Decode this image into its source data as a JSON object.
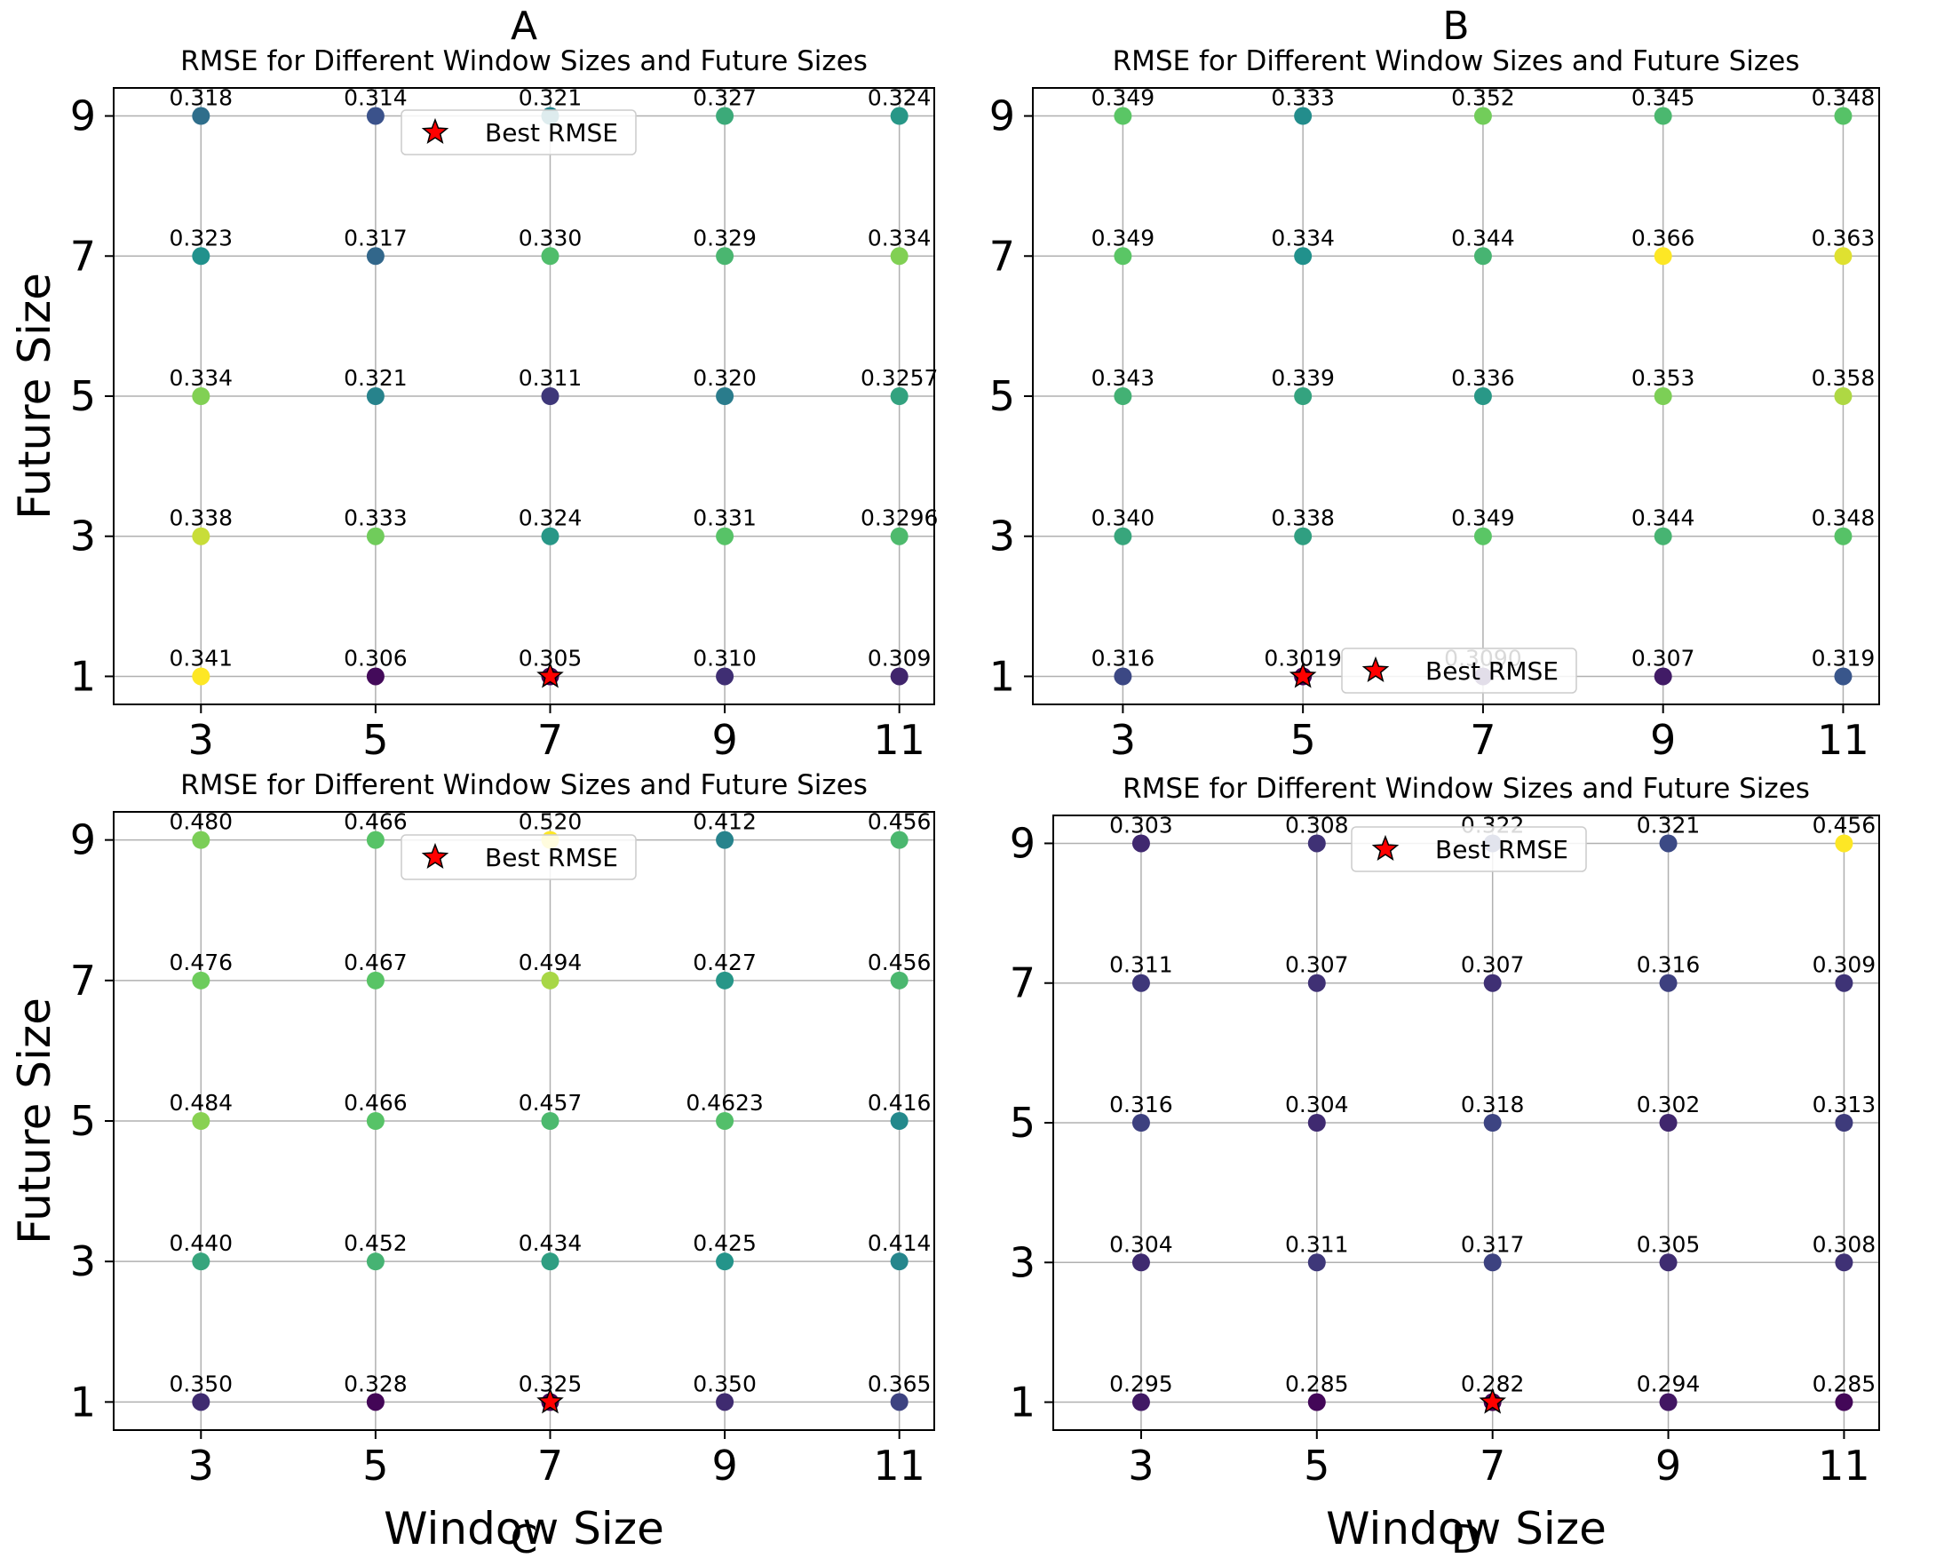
{
  "colors": {
    "colormap": [
      "#440154",
      "#3b528b",
      "#21918c",
      "#5ec962",
      "#fde725"
    ],
    "best_marker": "#ff0000",
    "grid": "#b0b0b0"
  },
  "shared": {
    "xlabel": "Window Size",
    "ylabel": "Future Size",
    "x_ticks": [
      "3",
      "5",
      "7",
      "9",
      "11"
    ],
    "y_ticks": [
      "1",
      "3",
      "5",
      "7",
      "9"
    ],
    "legend_label": "Best RMSE",
    "marker_icon": "red-star-icon"
  },
  "chart_data": [
    {
      "panel": "A",
      "type": "scatter",
      "title": "RMSE for Different Window Sizes and Future Sizes",
      "xlabel": "",
      "ylabel": "Future Size",
      "x": [
        3,
        5,
        7,
        9,
        11
      ],
      "y": [
        1,
        3,
        5,
        7,
        9
      ],
      "xlim": [
        2.0,
        11.4
      ],
      "ylim": [
        0.6,
        9.4
      ],
      "grid": true,
      "legend": "upper center",
      "best": {
        "x": 7,
        "y": 1
      },
      "values": [
        [
          0.341,
          0.306,
          0.305,
          0.31,
          0.309
        ],
        [
          0.338,
          0.333,
          0.324,
          0.331,
          0.3296
        ],
        [
          0.334,
          0.321,
          0.311,
          0.32,
          0.3257
        ],
        [
          0.323,
          0.317,
          0.33,
          0.329,
          0.334
        ],
        [
          0.318,
          0.314,
          0.321,
          0.327,
          0.324
        ]
      ],
      "labels": [
        [
          "0.341",
          "0.306",
          "0.305",
          "0.310",
          "0.309"
        ],
        [
          "0.338",
          "0.333",
          "0.324",
          "0.331",
          "0.3296"
        ],
        [
          "0.334",
          "0.321",
          "0.311",
          "0.320",
          "0.3257"
        ],
        [
          "0.323",
          "0.317",
          "0.330",
          "0.329",
          "0.334"
        ],
        [
          "0.318",
          "0.314",
          "0.321",
          "0.327",
          "0.324"
        ]
      ]
    },
    {
      "panel": "B",
      "type": "scatter",
      "title": "RMSE for Different Window Sizes and Future Sizes",
      "xlabel": "",
      "ylabel": "",
      "x": [
        3,
        5,
        7,
        9,
        11
      ],
      "y": [
        1,
        3,
        5,
        7,
        9
      ],
      "xlim": [
        2.0,
        11.4
      ],
      "ylim": [
        0.6,
        9.4
      ],
      "grid": true,
      "legend": "lower center",
      "best": {
        "x": 5,
        "y": 1
      },
      "values": [
        [
          0.316,
          0.3019,
          0.309,
          0.307,
          0.319
        ],
        [
          0.34,
          0.338,
          0.349,
          0.344,
          0.348
        ],
        [
          0.343,
          0.339,
          0.336,
          0.353,
          0.358
        ],
        [
          0.349,
          0.334,
          0.344,
          0.366,
          0.363
        ],
        [
          0.349,
          0.333,
          0.352,
          0.345,
          0.348
        ]
      ],
      "labels": [
        [
          "0.316",
          "0.3019",
          "0.3090",
          "0.307",
          "0.319"
        ],
        [
          "0.340",
          "0.338",
          "0.349",
          "0.344",
          "0.348"
        ],
        [
          "0.343",
          "0.339",
          "0.336",
          "0.353",
          "0.358"
        ],
        [
          "0.349",
          "0.334",
          "0.344",
          "0.366",
          "0.363"
        ],
        [
          "0.349",
          "0.333",
          "0.352",
          "0.345",
          "0.348"
        ]
      ]
    },
    {
      "panel": "C",
      "type": "scatter",
      "title": "RMSE for Different Window Sizes and Future Sizes",
      "xlabel": "Window Size",
      "ylabel": "Future Size",
      "x": [
        3,
        5,
        7,
        9,
        11
      ],
      "y": [
        1,
        3,
        5,
        7,
        9
      ],
      "xlim": [
        2.0,
        11.4
      ],
      "ylim": [
        0.6,
        9.4
      ],
      "grid": true,
      "legend": "upper center",
      "best": {
        "x": 7,
        "y": 1
      },
      "values": [
        [
          0.35,
          0.328,
          0.325,
          0.35,
          0.365
        ],
        [
          0.44,
          0.452,
          0.434,
          0.425,
          0.414
        ],
        [
          0.484,
          0.466,
          0.457,
          0.4623,
          0.416
        ],
        [
          0.476,
          0.467,
          0.494,
          0.427,
          0.456
        ],
        [
          0.48,
          0.466,
          0.52,
          0.412,
          0.456
        ]
      ],
      "labels": [
        [
          "0.350",
          "0.328",
          "0.325",
          "0.350",
          "0.365"
        ],
        [
          "0.440",
          "0.452",
          "0.434",
          "0.425",
          "0.414"
        ],
        [
          "0.484",
          "0.466",
          "0.457",
          "0.4623",
          "0.416"
        ],
        [
          "0.476",
          "0.467",
          "0.494",
          "0.427",
          "0.456"
        ],
        [
          "0.480",
          "0.466",
          "0.520",
          "0.412",
          "0.456"
        ]
      ]
    },
    {
      "panel": "D",
      "type": "scatter",
      "title": "RMSE for Different Window Sizes and Future Sizes",
      "xlabel": "Window Size",
      "ylabel": "",
      "x": [
        3,
        5,
        7,
        9,
        11
      ],
      "y": [
        1,
        3,
        5,
        7,
        9
      ],
      "xlim": [
        2.0,
        11.4
      ],
      "ylim": [
        0.6,
        9.4
      ],
      "grid": true,
      "legend": "upper center",
      "best": {
        "x": 7,
        "y": 1
      },
      "values": [
        [
          0.295,
          0.285,
          0.282,
          0.294,
          0.285
        ],
        [
          0.304,
          0.311,
          0.317,
          0.305,
          0.308
        ],
        [
          0.316,
          0.304,
          0.318,
          0.302,
          0.313
        ],
        [
          0.311,
          0.307,
          0.307,
          0.316,
          0.309
        ],
        [
          0.303,
          0.308,
          0.322,
          0.321,
          0.456
        ]
      ],
      "labels": [
        [
          "0.295",
          "0.285",
          "0.282",
          "0.294",
          "0.285"
        ],
        [
          "0.304",
          "0.311",
          "0.317",
          "0.305",
          "0.308"
        ],
        [
          "0.316",
          "0.304",
          "0.318",
          "0.302",
          "0.313"
        ],
        [
          "0.311",
          "0.307",
          "0.307",
          "0.316",
          "0.309"
        ],
        [
          "0.303",
          "0.308",
          "0.322",
          "0.321",
          "0.456"
        ]
      ]
    }
  ]
}
